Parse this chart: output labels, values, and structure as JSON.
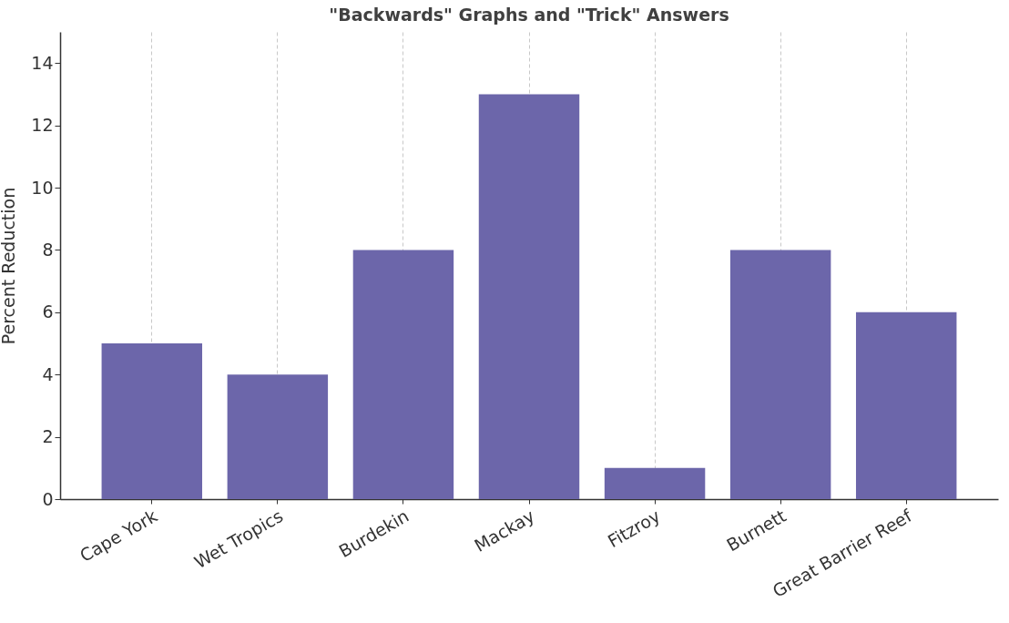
{
  "chart_data": {
    "type": "bar",
    "title": "\"Backwards\" Graphs and \"Trick\" Answers",
    "ylabel": "Percent Reduction",
    "categories": [
      "Cape York",
      "Wet Tropics",
      "Burdekin",
      "Mackay",
      "Fitzroy",
      "Burnett",
      "Great Barrier Reef"
    ],
    "values": [
      5,
      4,
      8,
      13,
      1,
      8,
      6
    ],
    "color": "#6c66aa",
    "ylim": [
      0,
      15
    ],
    "yticks": [
      0,
      2,
      4,
      6,
      8,
      10,
      12,
      14
    ],
    "grid": "x"
  }
}
